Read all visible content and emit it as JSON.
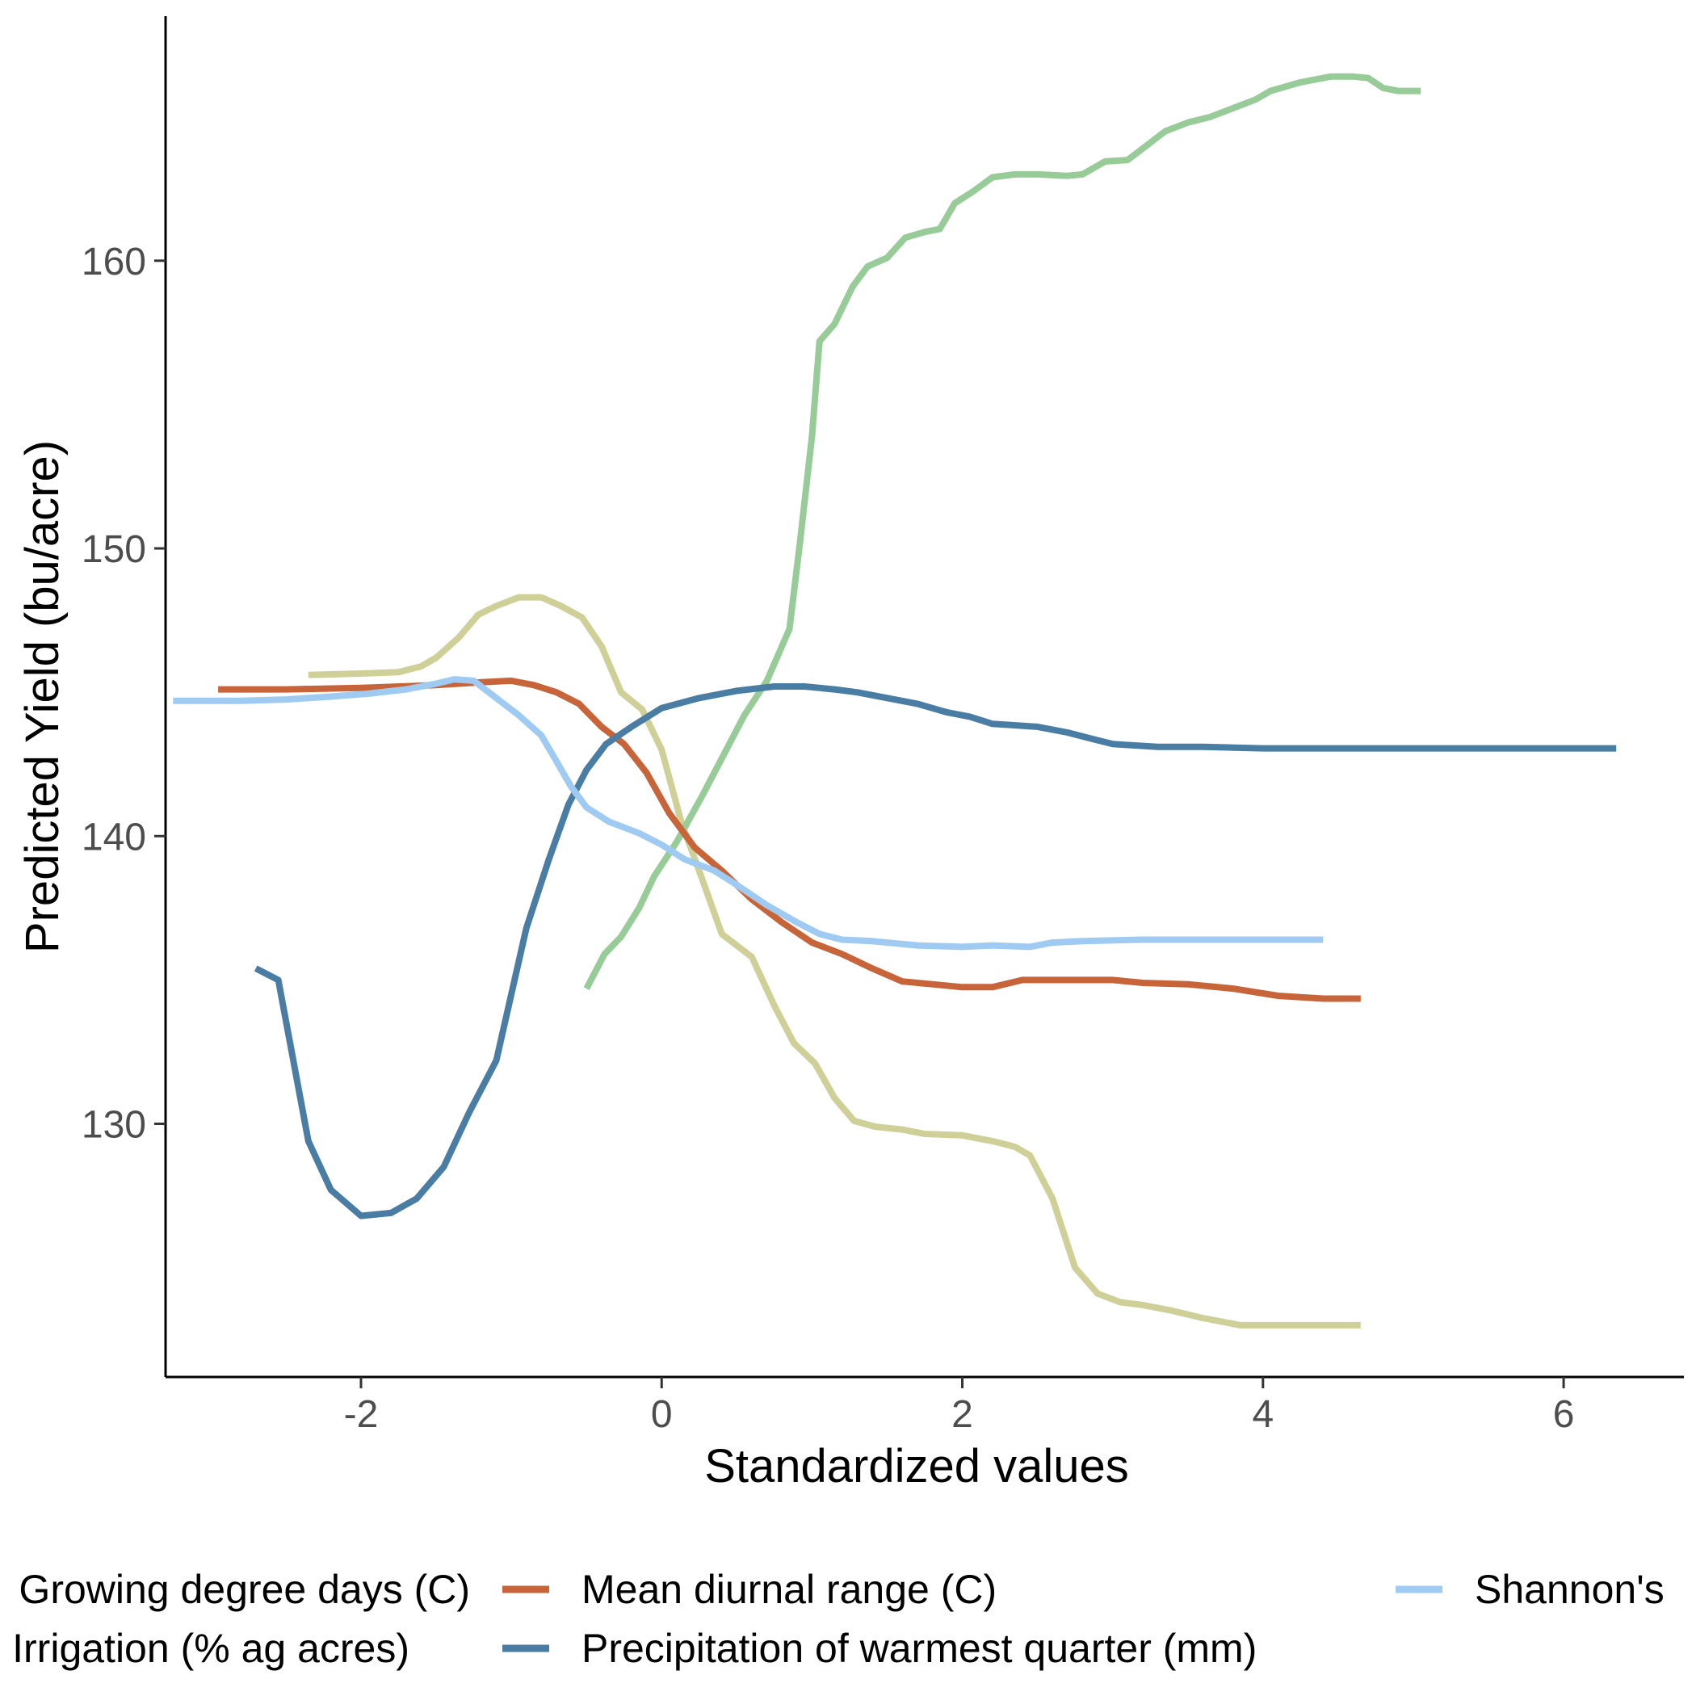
{
  "chart_data": {
    "type": "line",
    "title": "",
    "xlabel": "Standardized values",
    "ylabel": "Predicted Yield (bu/acre)",
    "xlim": [
      -3.3,
      6.8
    ],
    "ylim": [
      121.2,
      168.5
    ],
    "xticks": [
      -2,
      0,
      2,
      4,
      6
    ],
    "xtick_labels": [
      "-2",
      "0",
      "2",
      "4",
      "6"
    ],
    "yticks": [
      130,
      140,
      150,
      160
    ],
    "ytick_labels": [
      "130",
      "140",
      "150",
      "160"
    ],
    "grid": false,
    "legend_position": "bottom",
    "series": [
      {
        "name": "Growing degree days (C)",
        "color": "#cfd098",
        "points": [
          [
            -2.35,
            145.6
          ],
          [
            -2.0,
            145.65
          ],
          [
            -1.75,
            145.7
          ],
          [
            -1.6,
            145.9
          ],
          [
            -1.5,
            146.2
          ],
          [
            -1.35,
            146.9
          ],
          [
            -1.22,
            147.7
          ],
          [
            -1.1,
            148.0
          ],
          [
            -0.95,
            148.3
          ],
          [
            -0.8,
            148.3
          ],
          [
            -0.67,
            148.0
          ],
          [
            -0.53,
            147.6
          ],
          [
            -0.4,
            146.6
          ],
          [
            -0.27,
            145.0
          ],
          [
            -0.13,
            144.4
          ],
          [
            0.0,
            143.0
          ],
          [
            0.13,
            140.5
          ],
          [
            0.27,
            138.5
          ],
          [
            0.4,
            136.6
          ],
          [
            0.6,
            135.8
          ],
          [
            0.75,
            134.1
          ],
          [
            0.88,
            132.8
          ],
          [
            1.02,
            132.1
          ],
          [
            1.15,
            130.9
          ],
          [
            1.28,
            130.1
          ],
          [
            1.42,
            129.9
          ],
          [
            1.6,
            129.8
          ],
          [
            1.75,
            129.65
          ],
          [
            2.0,
            129.6
          ],
          [
            2.2,
            129.4
          ],
          [
            2.35,
            129.2
          ],
          [
            2.45,
            128.9
          ],
          [
            2.6,
            127.4
          ],
          [
            2.75,
            125.0
          ],
          [
            2.9,
            124.1
          ],
          [
            3.05,
            123.8
          ],
          [
            3.2,
            123.7
          ],
          [
            3.4,
            123.5
          ],
          [
            3.6,
            123.25
          ],
          [
            3.85,
            123.0
          ],
          [
            4.2,
            123.0
          ],
          [
            4.65,
            123.0
          ]
        ]
      },
      {
        "name": "Irrigation (% ag acres)",
        "color": "#97cb97",
        "points": [
          [
            -0.5,
            134.7
          ],
          [
            -0.38,
            135.9
          ],
          [
            -0.27,
            136.5
          ],
          [
            -0.15,
            137.5
          ],
          [
            -0.05,
            138.6
          ],
          [
            0.1,
            139.8
          ],
          [
            0.27,
            141.4
          ],
          [
            0.4,
            142.7
          ],
          [
            0.55,
            144.2
          ],
          [
            0.7,
            145.4
          ],
          [
            0.85,
            147.2
          ],
          [
            0.92,
            150.2
          ],
          [
            1.0,
            153.9
          ],
          [
            1.05,
            157.2
          ],
          [
            1.15,
            157.8
          ],
          [
            1.27,
            159.1
          ],
          [
            1.37,
            159.8
          ],
          [
            1.5,
            160.1
          ],
          [
            1.62,
            160.8
          ],
          [
            1.75,
            161.0
          ],
          [
            1.85,
            161.1
          ],
          [
            1.95,
            162.0
          ],
          [
            2.07,
            162.4
          ],
          [
            2.2,
            162.9
          ],
          [
            2.35,
            163.0
          ],
          [
            2.5,
            163.0
          ],
          [
            2.7,
            162.95
          ],
          [
            2.8,
            163.0
          ],
          [
            2.95,
            163.45
          ],
          [
            3.1,
            163.5
          ],
          [
            3.2,
            163.9
          ],
          [
            3.35,
            164.5
          ],
          [
            3.5,
            164.8
          ],
          [
            3.65,
            165.0
          ],
          [
            3.8,
            165.3
          ],
          [
            3.95,
            165.6
          ],
          [
            4.05,
            165.9
          ],
          [
            4.25,
            166.2
          ],
          [
            4.45,
            166.4
          ],
          [
            4.6,
            166.4
          ],
          [
            4.7,
            166.35
          ],
          [
            4.8,
            166.0
          ],
          [
            4.9,
            165.9
          ],
          [
            5.0,
            165.9
          ],
          [
            5.05,
            165.9
          ]
        ]
      },
      {
        "name": "Mean diurnal range (C)",
        "color": "#c8643a",
        "points": [
          [
            -2.95,
            145.1
          ],
          [
            -2.5,
            145.1
          ],
          [
            -2.0,
            145.15
          ],
          [
            -1.5,
            145.25
          ],
          [
            -1.2,
            145.35
          ],
          [
            -1.0,
            145.4
          ],
          [
            -0.85,
            145.25
          ],
          [
            -0.7,
            145.0
          ],
          [
            -0.55,
            144.6
          ],
          [
            -0.4,
            143.8
          ],
          [
            -0.25,
            143.2
          ],
          [
            -0.1,
            142.2
          ],
          [
            0.05,
            140.8
          ],
          [
            0.22,
            139.6
          ],
          [
            0.4,
            138.8
          ],
          [
            0.6,
            137.8
          ],
          [
            0.8,
            137.0
          ],
          [
            1.0,
            136.3
          ],
          [
            1.2,
            135.9
          ],
          [
            1.4,
            135.4
          ],
          [
            1.6,
            134.95
          ],
          [
            1.8,
            134.85
          ],
          [
            2.0,
            134.75
          ],
          [
            2.2,
            134.75
          ],
          [
            2.4,
            135.0
          ],
          [
            2.7,
            135.0
          ],
          [
            3.0,
            135.0
          ],
          [
            3.2,
            134.9
          ],
          [
            3.5,
            134.85
          ],
          [
            3.8,
            134.7
          ],
          [
            4.1,
            134.45
          ],
          [
            4.4,
            134.35
          ],
          [
            4.65,
            134.35
          ]
        ]
      },
      {
        "name": "Precipitation of warmest quarter (mm)",
        "color": "#4a7da3",
        "points": [
          [
            -2.7,
            135.4
          ],
          [
            -2.55,
            135.0
          ],
          [
            -2.35,
            129.4
          ],
          [
            -2.2,
            127.7
          ],
          [
            -2.0,
            126.8
          ],
          [
            -1.8,
            126.9
          ],
          [
            -1.63,
            127.4
          ],
          [
            -1.45,
            128.5
          ],
          [
            -1.28,
            130.4
          ],
          [
            -1.1,
            132.2
          ],
          [
            -0.9,
            136.8
          ],
          [
            -0.75,
            139.2
          ],
          [
            -0.62,
            141.1
          ],
          [
            -0.5,
            142.3
          ],
          [
            -0.37,
            143.2
          ],
          [
            -0.2,
            143.8
          ],
          [
            0.0,
            144.45
          ],
          [
            0.25,
            144.8
          ],
          [
            0.5,
            145.05
          ],
          [
            0.75,
            145.2
          ],
          [
            0.95,
            145.2
          ],
          [
            1.15,
            145.1
          ],
          [
            1.3,
            145.0
          ],
          [
            1.5,
            144.8
          ],
          [
            1.7,
            144.6
          ],
          [
            1.9,
            144.3
          ],
          [
            2.05,
            144.15
          ],
          [
            2.2,
            143.9
          ],
          [
            2.5,
            143.8
          ],
          [
            2.7,
            143.6
          ],
          [
            2.85,
            143.4
          ],
          [
            3.0,
            143.2
          ],
          [
            3.3,
            143.1
          ],
          [
            3.6,
            143.1
          ],
          [
            4.0,
            143.05
          ],
          [
            5.0,
            143.05
          ],
          [
            6.35,
            143.05
          ]
        ]
      },
      {
        "name": "Shannon's",
        "color": "#9fcbf3",
        "points": [
          [
            -3.25,
            144.7
          ],
          [
            -2.8,
            144.7
          ],
          [
            -2.5,
            144.75
          ],
          [
            -2.2,
            144.85
          ],
          [
            -1.95,
            144.95
          ],
          [
            -1.7,
            145.1
          ],
          [
            -1.5,
            145.3
          ],
          [
            -1.38,
            145.45
          ],
          [
            -1.25,
            145.4
          ],
          [
            -1.05,
            144.6
          ],
          [
            -0.95,
            144.2
          ],
          [
            -0.8,
            143.5
          ],
          [
            -0.7,
            142.6
          ],
          [
            -0.6,
            141.7
          ],
          [
            -0.5,
            141.0
          ],
          [
            -0.35,
            140.5
          ],
          [
            -0.15,
            140.1
          ],
          [
            0.0,
            139.7
          ],
          [
            0.15,
            139.2
          ],
          [
            0.35,
            138.8
          ],
          [
            0.5,
            138.3
          ],
          [
            0.7,
            137.6
          ],
          [
            0.9,
            137.0
          ],
          [
            1.05,
            136.6
          ],
          [
            1.2,
            136.4
          ],
          [
            1.4,
            136.35
          ],
          [
            1.7,
            136.2
          ],
          [
            2.0,
            136.15
          ],
          [
            2.2,
            136.2
          ],
          [
            2.45,
            136.15
          ],
          [
            2.6,
            136.3
          ],
          [
            2.8,
            136.35
          ],
          [
            3.2,
            136.4
          ],
          [
            3.6,
            136.4
          ],
          [
            4.0,
            136.4
          ],
          [
            4.4,
            136.4
          ]
        ]
      }
    ]
  }
}
